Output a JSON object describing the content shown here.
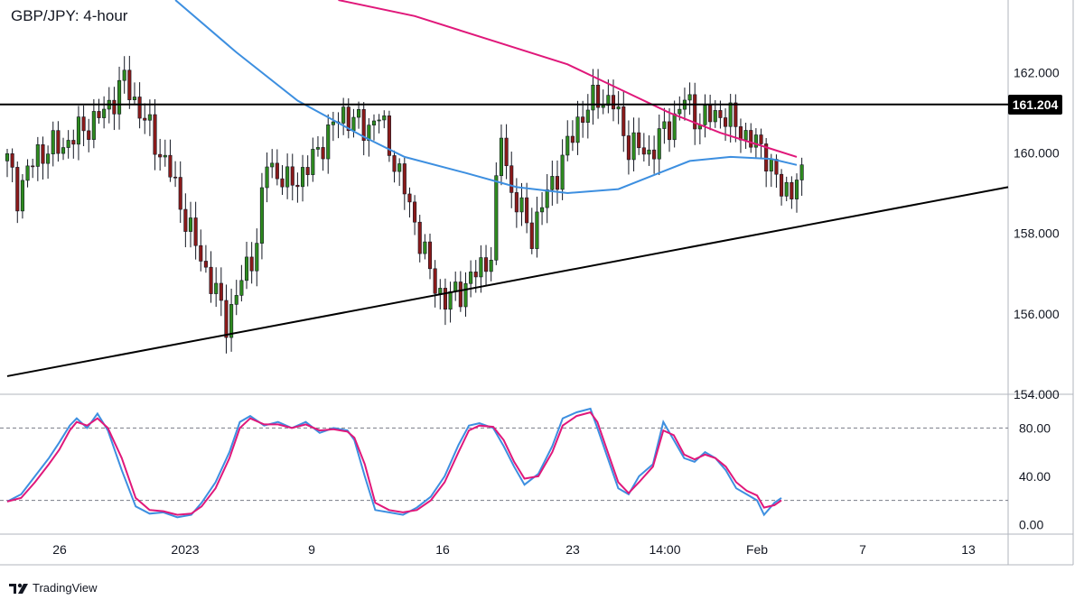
{
  "header": {
    "title": "GBP/JPY: 4-hour"
  },
  "branding": {
    "name": "TradingView",
    "logo_icon": "tradingview-logo-icon"
  },
  "chart_data": [
    {
      "type": "candlestick",
      "title": "GBP/JPY: 4-hour",
      "ylim": [
        154.0,
        163.8
      ],
      "y_ticks": [
        "154.000",
        "156.000",
        "158.000",
        "160.000",
        "162.000"
      ],
      "x_ticks": [
        "26",
        "2023",
        "9",
        "16",
        "23",
        "14:00",
        "Feb",
        "7",
        "13"
      ],
      "colors": {
        "up": "#2e8b1f",
        "down": "#8b1a1a",
        "wick": "#131722",
        "ma_fast": "#3d8fe0",
        "ma_slow": "#e0187a"
      },
      "close_path": [
        {
          "t": 0,
          "v": 159.8
        },
        {
          "t": 2,
          "v": 159.0
        },
        {
          "t": 6,
          "v": 160.0
        },
        {
          "t": 11,
          "v": 160.2
        },
        {
          "t": 15,
          "v": 160.6
        },
        {
          "t": 19,
          "v": 161.0
        },
        {
          "t": 23,
          "v": 161.8
        },
        {
          "t": 27,
          "v": 160.8
        },
        {
          "t": 32,
          "v": 159.5
        },
        {
          "t": 36,
          "v": 158.0
        },
        {
          "t": 40,
          "v": 156.8
        },
        {
          "t": 43,
          "v": 155.8
        },
        {
          "t": 46,
          "v": 156.8
        },
        {
          "t": 49,
          "v": 157.8
        },
        {
          "t": 51,
          "v": 159.8
        },
        {
          "t": 55,
          "v": 159.2
        },
        {
          "t": 59,
          "v": 159.6
        },
        {
          "t": 62,
          "v": 160.3
        },
        {
          "t": 66,
          "v": 161.0
        },
        {
          "t": 70,
          "v": 160.6
        },
        {
          "t": 73,
          "v": 160.9
        },
        {
          "t": 76,
          "v": 159.8
        },
        {
          "t": 80,
          "v": 158.3
        },
        {
          "t": 83,
          "v": 157.0
        },
        {
          "t": 86,
          "v": 156.3
        },
        {
          "t": 89,
          "v": 156.6
        },
        {
          "t": 92,
          "v": 157.0
        },
        {
          "t": 95,
          "v": 157.5
        },
        {
          "t": 97,
          "v": 160.5
        },
        {
          "t": 99,
          "v": 159.0
        },
        {
          "t": 103,
          "v": 158.0
        },
        {
          "t": 106,
          "v": 159.0
        },
        {
          "t": 109,
          "v": 159.8
        },
        {
          "t": 112,
          "v": 160.8
        },
        {
          "t": 116,
          "v": 161.4
        },
        {
          "t": 119,
          "v": 161.2
        },
        {
          "t": 122,
          "v": 160.2
        },
        {
          "t": 126,
          "v": 160.0
        },
        {
          "t": 130,
          "v": 160.7
        },
        {
          "t": 133,
          "v": 161.3
        },
        {
          "t": 136,
          "v": 160.8
        },
        {
          "t": 140,
          "v": 161.0
        },
        {
          "t": 143,
          "v": 160.7
        },
        {
          "t": 146,
          "v": 160.3
        },
        {
          "t": 149,
          "v": 160.0
        },
        {
          "t": 152,
          "v": 159.0
        },
        {
          "t": 155,
          "v": 159.3
        }
      ],
      "lines": [
        {
          "name": "",
          "kind": "ma",
          "color": "#3d8fe0",
          "points": [
            [
              33,
              163.8
            ],
            [
              45,
              162.5
            ],
            [
              57,
              161.3
            ],
            [
              70,
              160.4
            ],
            [
              78,
              159.9
            ],
            [
              90,
              159.5
            ],
            [
              100,
              159.15
            ],
            [
              110,
              159.0
            ],
            [
              120,
              159.1
            ],
            [
              128,
              159.5
            ],
            [
              134,
              159.8
            ],
            [
              142,
              159.9
            ],
            [
              150,
              159.85
            ],
            [
              155,
              159.7
            ]
          ]
        },
        {
          "name": "",
          "kind": "ma",
          "color": "#e0187a",
          "points": [
            [
              65,
              163.8
            ],
            [
              80,
              163.4
            ],
            [
              95,
              162.8
            ],
            [
              110,
              162.2
            ],
            [
              120,
              161.6
            ],
            [
              130,
              161.0
            ],
            [
              140,
              160.5
            ],
            [
              150,
              160.1
            ],
            [
              155,
              159.9
            ]
          ]
        },
        {
          "name": "resistance",
          "kind": "horizontal",
          "color": "#000000",
          "value": 161.204
        },
        {
          "name": "support",
          "kind": "trendline",
          "color": "#000000",
          "points": [
            [
              0,
              154.45
            ],
            [
              196.5,
              159.15
            ]
          ]
        }
      ],
      "price_label": "161.204"
    },
    {
      "type": "line",
      "title": "",
      "ylim": [
        -8,
        108
      ],
      "y_ticks": [
        "0.00",
        "40.00",
        "80.00"
      ],
      "levels": [
        80,
        20
      ],
      "series": [
        {
          "name": "",
          "color": "#3d8fe0",
          "points": [
            [
              0,
              19
            ],
            [
              4,
              25
            ],
            [
              8,
              40
            ],
            [
              12,
              55
            ],
            [
              15,
              68
            ],
            [
              18,
              82
            ],
            [
              20,
              88
            ],
            [
              23,
              80
            ],
            [
              26,
              92
            ],
            [
              29,
              78
            ],
            [
              33,
              45
            ],
            [
              37,
              15
            ],
            [
              41,
              9
            ],
            [
              45,
              10
            ],
            [
              49,
              6
            ],
            [
              53,
              8
            ],
            [
              56,
              18
            ],
            [
              60,
              35
            ],
            [
              64,
              60
            ],
            [
              67,
              85
            ],
            [
              70,
              90
            ],
            [
              74,
              82
            ],
            [
              78,
              85
            ],
            [
              82,
              80
            ],
            [
              86,
              85
            ],
            [
              90,
              76
            ],
            [
              94,
              80
            ],
            [
              98,
              78
            ],
            [
              100,
              70
            ],
            [
              103,
              40
            ],
            [
              106,
              12
            ],
            [
              110,
              10
            ],
            [
              114,
              8
            ],
            [
              118,
              14
            ],
            [
              122,
              23
            ],
            [
              126,
              40
            ],
            [
              130,
              66
            ],
            [
              133,
              82
            ],
            [
              136,
              84
            ],
            [
              140,
              80
            ],
            [
              143,
              65
            ],
            [
              146,
              48
            ],
            [
              149,
              33
            ],
            [
              153,
              42
            ],
            [
              157,
              65
            ],
            [
              160,
              88
            ],
            [
              164,
              93
            ],
            [
              168,
              96
            ],
            [
              170,
              80
            ],
            [
              173,
              55
            ],
            [
              176,
              30
            ],
            [
              179,
              25
            ],
            [
              182,
              40
            ],
            [
              186,
              50
            ],
            [
              189,
              85
            ],
            [
              192,
              70
            ],
            [
              195,
              55
            ],
            [
              198,
              52
            ],
            [
              201,
              60
            ],
            [
              204,
              55
            ],
            [
              207,
              45
            ],
            [
              210,
              30
            ],
            [
              213,
              25
            ],
            [
              216,
              20
            ],
            [
              218,
              8
            ],
            [
              221,
              18
            ],
            [
              223,
              22
            ]
          ]
        },
        {
          "name": "",
          "color": "#e0187a",
          "points": [
            [
              0,
              19
            ],
            [
              4,
              22
            ],
            [
              8,
              35
            ],
            [
              12,
              50
            ],
            [
              15,
              62
            ],
            [
              18,
              78
            ],
            [
              20,
              85
            ],
            [
              23,
              82
            ],
            [
              26,
              88
            ],
            [
              29,
              80
            ],
            [
              33,
              55
            ],
            [
              37,
              22
            ],
            [
              41,
              12
            ],
            [
              45,
              11
            ],
            [
              49,
              8
            ],
            [
              53,
              9
            ],
            [
              56,
              15
            ],
            [
              60,
              30
            ],
            [
              64,
              55
            ],
            [
              67,
              80
            ],
            [
              70,
              88
            ],
            [
              74,
              83
            ],
            [
              78,
              83
            ],
            [
              82,
              80
            ],
            [
              86,
              83
            ],
            [
              90,
              78
            ],
            [
              94,
              79
            ],
            [
              98,
              77
            ],
            [
              100,
              72
            ],
            [
              103,
              50
            ],
            [
              106,
              18
            ],
            [
              110,
              12
            ],
            [
              114,
              10
            ],
            [
              118,
              12
            ],
            [
              122,
              20
            ],
            [
              126,
              35
            ],
            [
              130,
              60
            ],
            [
              133,
              78
            ],
            [
              136,
              82
            ],
            [
              140,
              81
            ],
            [
              143,
              70
            ],
            [
              146,
              52
            ],
            [
              149,
              38
            ],
            [
              153,
              40
            ],
            [
              157,
              60
            ],
            [
              160,
              82
            ],
            [
              164,
              90
            ],
            [
              168,
              93
            ],
            [
              170,
              85
            ],
            [
              173,
              60
            ],
            [
              176,
              35
            ],
            [
              179,
              26
            ],
            [
              182,
              35
            ],
            [
              186,
              48
            ],
            [
              189,
              78
            ],
            [
              192,
              74
            ],
            [
              195,
              58
            ],
            [
              198,
              54
            ],
            [
              201,
              58
            ],
            [
              204,
              55
            ],
            [
              207,
              48
            ],
            [
              210,
              35
            ],
            [
              213,
              28
            ],
            [
              216,
              24
            ],
            [
              218,
              14
            ],
            [
              221,
              16
            ],
            [
              223,
              20
            ]
          ]
        }
      ]
    }
  ]
}
